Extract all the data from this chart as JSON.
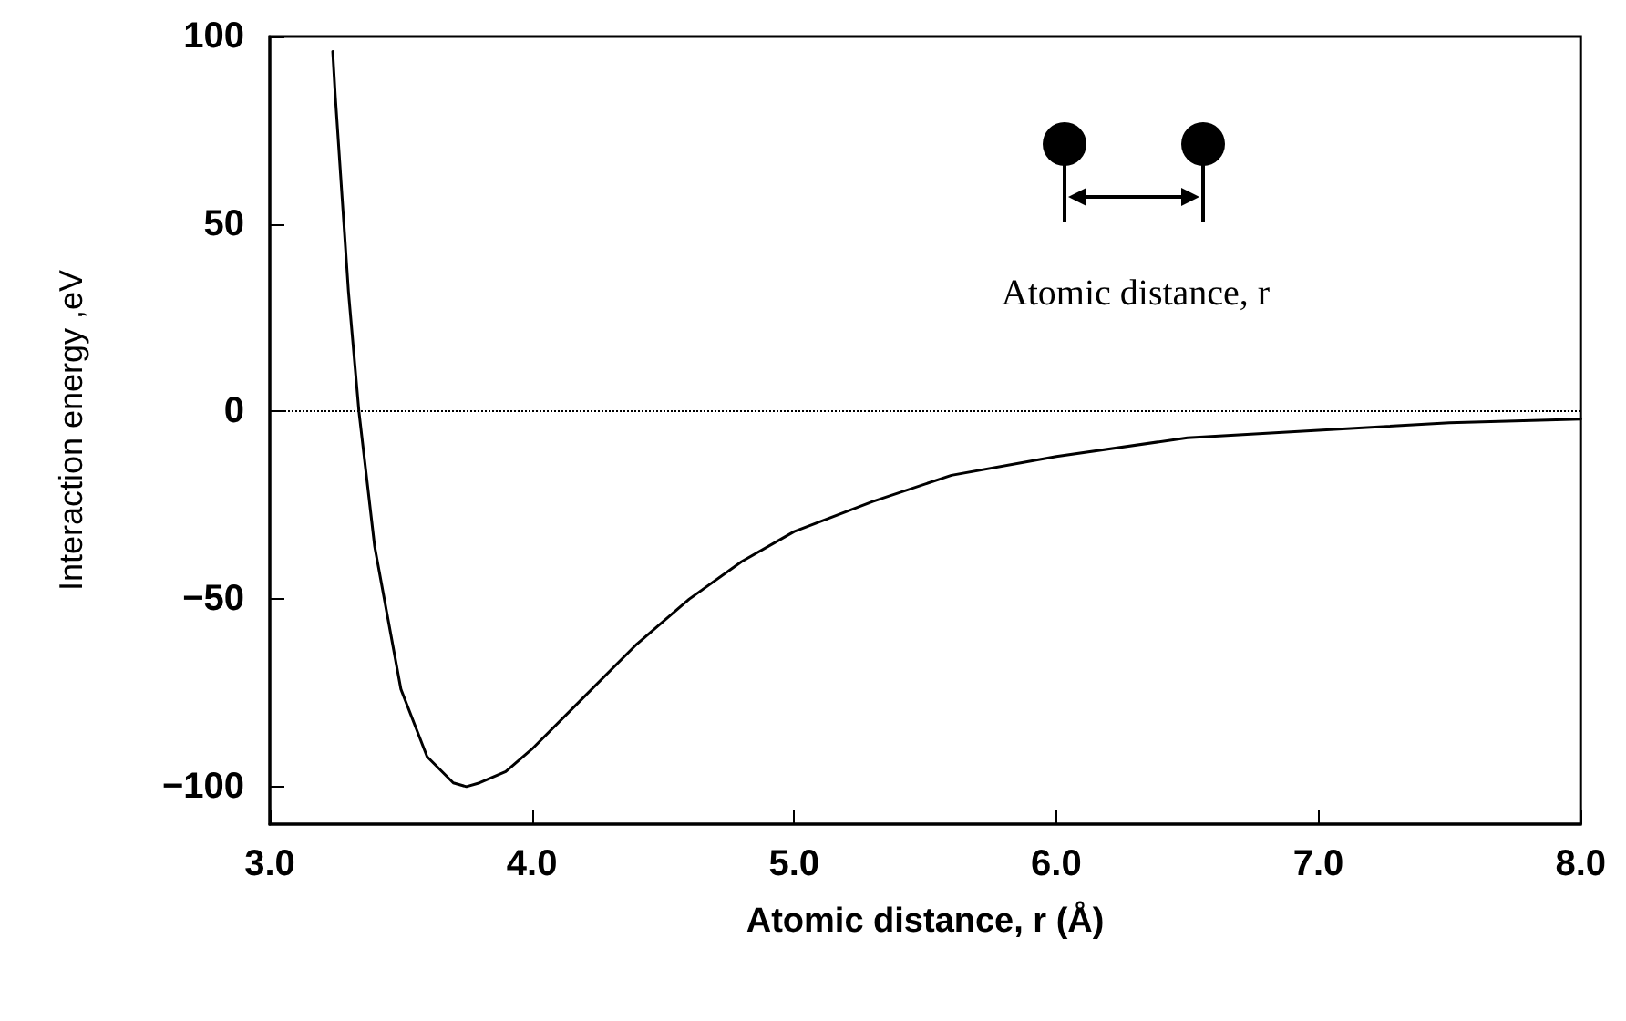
{
  "chart_data": {
    "type": "line",
    "xlabel": "Atomic distance, r (Å)",
    "ylabel": "Interaction energy ,eV",
    "x": [
      3.24,
      3.25,
      3.3,
      3.34,
      3.4,
      3.5,
      3.6,
      3.7,
      3.75,
      3.8,
      3.9,
      4.0,
      4.2,
      4.4,
      4.6,
      4.8,
      5.0,
      5.3,
      5.6,
      6.0,
      6.5,
      7.0,
      7.5,
      8.0
    ],
    "series": [
      {
        "color": "#000000",
        "values": [
          96,
          84,
          32,
          0,
          -36,
          -74,
          -92,
          -99,
          -100,
          -99,
          -96,
          -90,
          -76,
          -62,
          -50,
          -40,
          -32,
          -24,
          -17,
          -12,
          -7,
          -5,
          -3,
          -2
        ]
      }
    ],
    "xlim": [
      3,
      8
    ],
    "ylim": [
      -110,
      100
    ],
    "xticks": [
      {
        "value": 3,
        "label": "3.0"
      },
      {
        "value": 4,
        "label": "4.0"
      },
      {
        "value": 5,
        "label": "5.0"
      },
      {
        "value": 6,
        "label": "6.0"
      },
      {
        "value": 7,
        "label": "7.0"
      },
      {
        "value": 8,
        "label": "8.0"
      }
    ],
    "yticks": [
      {
        "value": -100,
        "label": "−100"
      },
      {
        "value": -50,
        "label": "−50"
      },
      0,
      50,
      100
    ],
    "ref_lines": [
      {
        "axis": "y",
        "value": 0,
        "color": "#000000",
        "line_style": "dotted"
      }
    ],
    "annotations": [
      "Atomic distance, r"
    ],
    "grid": false,
    "marker": "none",
    "line_style": "solid"
  }
}
